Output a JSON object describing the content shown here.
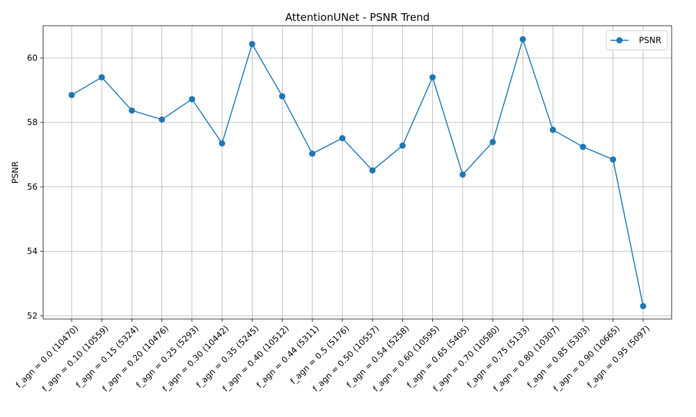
{
  "chart_data": {
    "type": "line",
    "title": "AttentionUNet - PSNR Trend",
    "xlabel": "",
    "ylabel": "PSNR",
    "categories": [
      "f_agn = 0.0 (10470)",
      "f_agn = 0.10 (10559)",
      "f_agn = 0.15 (5324)",
      "f_agn = 0.20 (10476)",
      "f_agn = 0.25 (5293)",
      "f_agn = 0.30 (10442)",
      "f_agn = 0.35 (5245)",
      "f_agn = 0.40 (10512)",
      "f_agn = 0.44 (5311)",
      "f_agn = 0.5 (5176)",
      "f_agn = 0.50 (10557)",
      "f_agn = 0.54 (5258)",
      "f_agn = 0.60 (10595)",
      "f_agn = 0.65 (5405)",
      "f_agn = 0.70 (10580)",
      "f_agn = 0.75 (5133)",
      "f_agn = 0.80 (10307)",
      "f_agn = 0.85 (5303)",
      "f_agn = 0.90 (10665)",
      "f_agn = 0.95 (5097)"
    ],
    "series": [
      {
        "name": "PSNR",
        "color": "#1f77b4",
        "marker": "circle",
        "values": [
          58.85,
          59.4,
          58.37,
          58.09,
          58.72,
          57.35,
          60.43,
          58.81,
          57.03,
          57.51,
          56.51,
          57.28,
          59.4,
          56.38,
          57.39,
          60.58,
          57.77,
          57.24,
          56.85,
          52.3
        ]
      }
    ],
    "ylim": [
      51.9,
      61.0
    ],
    "yticks": [
      52,
      54,
      56,
      58,
      60
    ],
    "ytick_labels": [
      "52",
      "54",
      "56",
      "58",
      "60"
    ],
    "grid": true,
    "legend": "top-right"
  }
}
